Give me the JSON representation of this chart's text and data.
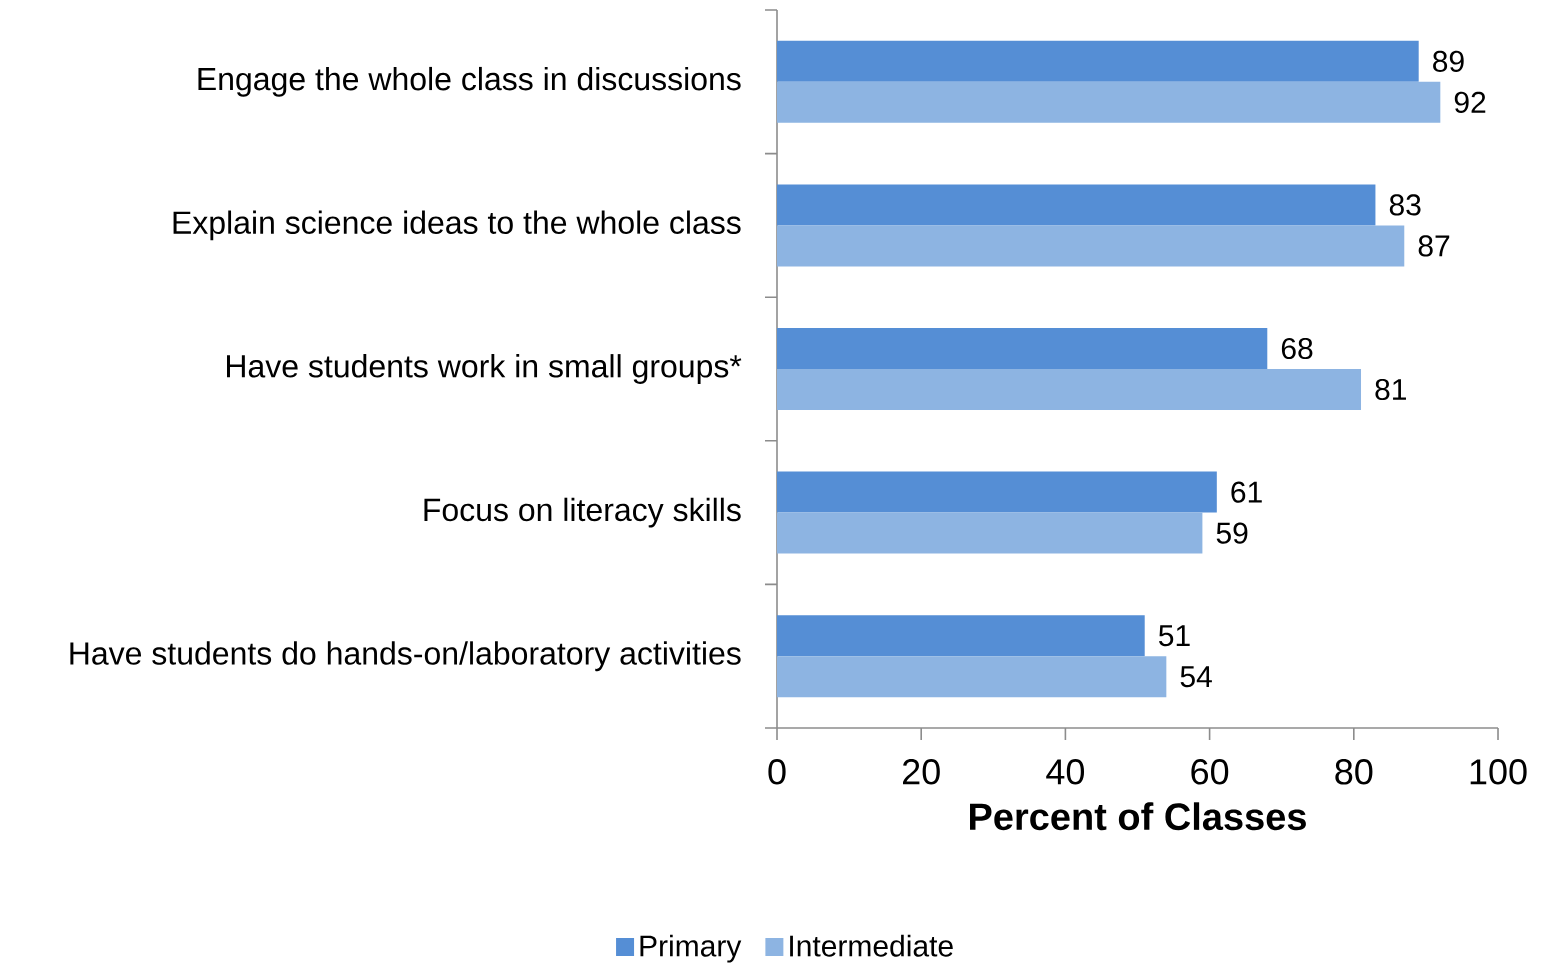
{
  "chart_data": {
    "type": "bar",
    "orientation": "horizontal",
    "xlabel": "Percent of Classes",
    "categories": [
      "Engage the whole class in discussions",
      "Explain science ideas to the whole class",
      "Have students work in small groups*",
      "Focus on literacy skills",
      "Have students do hands-on/laboratory activities"
    ],
    "series": [
      {
        "name": "Primary",
        "color": "#558ed5",
        "values": [
          89,
          83,
          68,
          61,
          51
        ]
      },
      {
        "name": "Intermediate",
        "color": "#8db4e2",
        "values": [
          92,
          87,
          81,
          59,
          54
        ]
      }
    ],
    "xlim": [
      0,
      100
    ],
    "xticks": [
      0,
      20,
      40,
      60,
      80,
      100
    ],
    "data_labels": true,
    "legend": "bottom",
    "grid": false
  }
}
